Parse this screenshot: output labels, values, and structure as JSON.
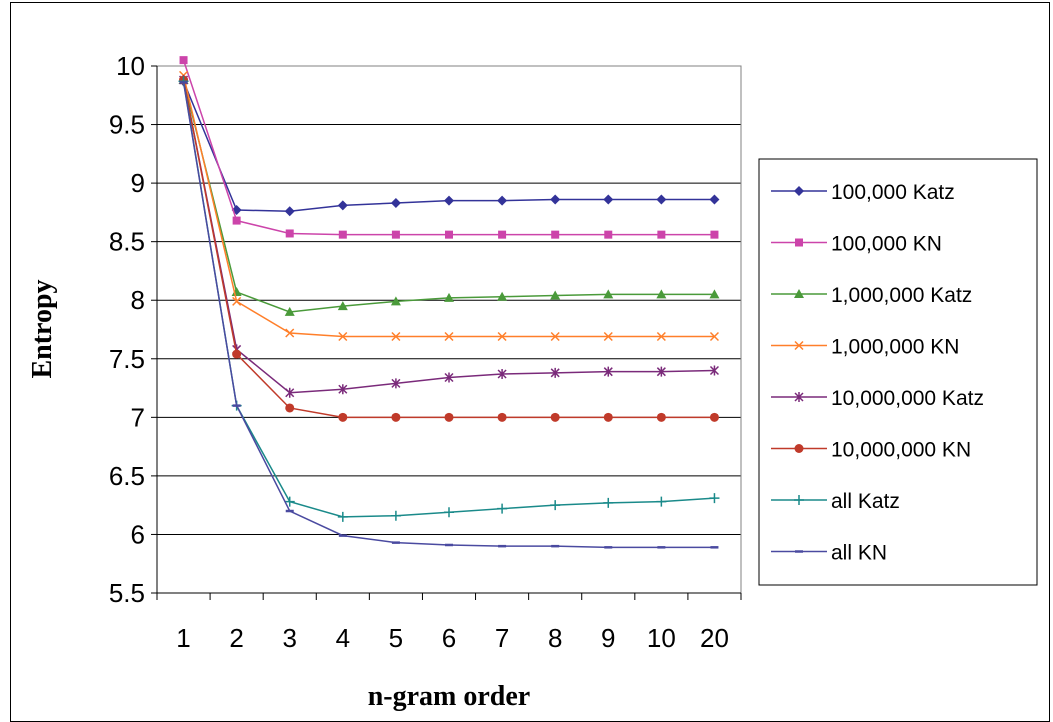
{
  "chart_data": {
    "type": "line",
    "title": "",
    "xlabel": "n-gram order",
    "ylabel": "Entropy",
    "categories": [
      "1",
      "2",
      "3",
      "4",
      "5",
      "6",
      "7",
      "8",
      "9",
      "10",
      "20"
    ],
    "ylim": [
      5.5,
      10
    ],
    "yticks": [
      "5.5",
      "6",
      "6.5",
      "7",
      "7.5",
      "8",
      "8.5",
      "9",
      "9.5",
      "10"
    ],
    "grid": true,
    "legend_position": "right",
    "series": [
      {
        "name": "100,000 Katz",
        "color": "#333399",
        "marker": "diamond",
        "values": [
          9.87,
          8.77,
          8.76,
          8.81,
          8.83,
          8.85,
          8.85,
          8.86,
          8.86,
          8.86,
          8.86
        ]
      },
      {
        "name": "100,000 KN",
        "color": "#cc44aa",
        "marker": "square",
        "values": [
          10.05,
          8.68,
          8.57,
          8.56,
          8.56,
          8.56,
          8.56,
          8.56,
          8.56,
          8.56,
          8.56
        ]
      },
      {
        "name": "1,000,000 Katz",
        "color": "#4a9a3a",
        "marker": "triangle",
        "values": [
          9.88,
          8.07,
          7.9,
          7.95,
          7.99,
          8.02,
          8.03,
          8.04,
          8.05,
          8.05,
          8.05
        ]
      },
      {
        "name": "1,000,000 KN",
        "color": "#ff7f2a",
        "marker": "x",
        "values": [
          9.92,
          7.99,
          7.72,
          7.69,
          7.69,
          7.69,
          7.69,
          7.69,
          7.69,
          7.69,
          7.69
        ]
      },
      {
        "name": "10,000,000 Katz",
        "color": "#7a2a7a",
        "marker": "star",
        "values": [
          9.88,
          7.58,
          7.21,
          7.24,
          7.29,
          7.34,
          7.37,
          7.38,
          7.39,
          7.39,
          7.4
        ]
      },
      {
        "name": "10,000,000 KN",
        "color": "#c03a2a",
        "marker": "circle",
        "values": [
          9.88,
          7.54,
          7.08,
          7.0,
          7.0,
          7.0,
          7.0,
          7.0,
          7.0,
          7.0,
          7.0
        ]
      },
      {
        "name": "all Katz",
        "color": "#1a8a8a",
        "marker": "plus",
        "values": [
          9.87,
          7.1,
          6.28,
          6.15,
          6.16,
          6.19,
          6.22,
          6.25,
          6.27,
          6.28,
          6.31
        ]
      },
      {
        "name": "all KN",
        "color": "#4a4aa0",
        "marker": "dash",
        "values": [
          9.86,
          7.1,
          6.2,
          5.99,
          5.93,
          5.91,
          5.9,
          5.9,
          5.89,
          5.89,
          5.89
        ]
      }
    ]
  }
}
